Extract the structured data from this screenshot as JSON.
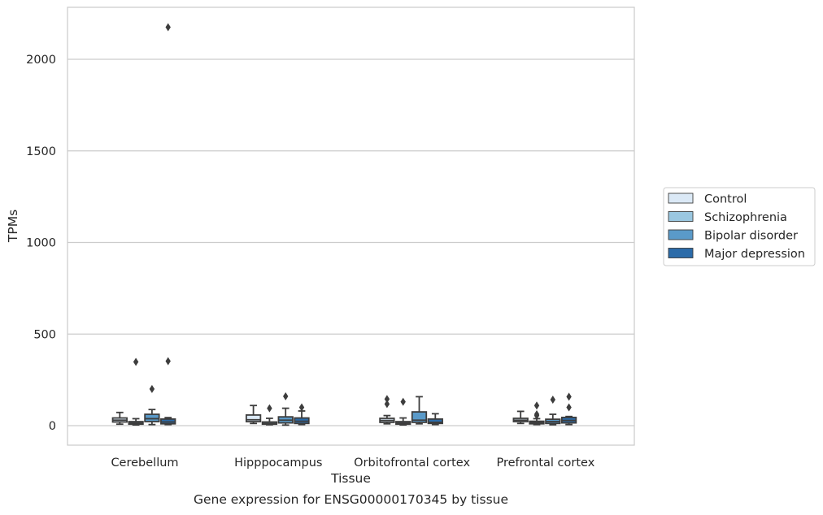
{
  "caption": "Gene expression for ENSG00000170345 by tissue",
  "chart_data": {
    "type": "box",
    "xlabel": "Tissue",
    "ylabel": "TPMs",
    "ylim": [
      -105,
      2285
    ],
    "yticks": [
      0,
      500,
      1000,
      1500,
      2000
    ],
    "grid": true,
    "legend_position": "right",
    "categories": [
      "Cerebellum",
      "Hipppocampus",
      "Orbitofrontal cortex",
      "Prefrontal cortex"
    ],
    "series": [
      {
        "name": "Control",
        "color": "#dbe9f6",
        "boxes": [
          {
            "whislo": 8,
            "q1": 20,
            "med": 30,
            "q3": 42,
            "whishi": 72,
            "fliers": []
          },
          {
            "whislo": 12,
            "q1": 22,
            "med": 32,
            "q3": 58,
            "whishi": 110,
            "fliers": []
          },
          {
            "whislo": 10,
            "q1": 18,
            "med": 28,
            "q3": 40,
            "whishi": 55,
            "fliers": [
              118,
              145
            ]
          },
          {
            "whislo": 12,
            "q1": 22,
            "med": 30,
            "q3": 40,
            "whishi": 78,
            "fliers": []
          }
        ]
      },
      {
        "name": "Schizophrenia",
        "color": "#9ac7e0",
        "boxes": [
          {
            "whislo": 4,
            "q1": 8,
            "med": 14,
            "q3": 22,
            "whishi": 38,
            "fliers": [
              348
            ]
          },
          {
            "whislo": 5,
            "q1": 8,
            "med": 12,
            "q3": 20,
            "whishi": 40,
            "fliers": [
              95
            ]
          },
          {
            "whislo": 4,
            "q1": 8,
            "med": 14,
            "q3": 22,
            "whishi": 42,
            "fliers": [
              130
            ]
          },
          {
            "whislo": 6,
            "q1": 10,
            "med": 16,
            "q3": 24,
            "whishi": 38,
            "fliers": [
              55,
              62,
              110
            ]
          }
        ]
      },
      {
        "name": "Bipolar disorder",
        "color": "#5a9ac9",
        "boxes": [
          {
            "whislo": 6,
            "q1": 22,
            "med": 38,
            "q3": 62,
            "whishi": 88,
            "fliers": [
              200
            ]
          },
          {
            "whislo": 3,
            "q1": 15,
            "med": 30,
            "q3": 48,
            "whishi": 95,
            "fliers": [
              160
            ]
          },
          {
            "whislo": 10,
            "q1": 18,
            "med": 30,
            "q3": 75,
            "whishi": 158,
            "fliers": []
          },
          {
            "whislo": 5,
            "q1": 12,
            "med": 22,
            "q3": 35,
            "whishi": 62,
            "fliers": [
              142
            ]
          }
        ]
      },
      {
        "name": "Major depression",
        "color": "#2b6ba9",
        "boxes": [
          {
            "whislo": 6,
            "q1": 10,
            "med": 20,
            "q3": 36,
            "whishi": 44,
            "fliers": [
              352,
              2175
            ]
          },
          {
            "whislo": 6,
            "q1": 12,
            "med": 24,
            "q3": 42,
            "whishi": 80,
            "fliers": [
              100
            ]
          },
          {
            "whislo": 6,
            "q1": 12,
            "med": 18,
            "q3": 36,
            "whishi": 65,
            "fliers": []
          },
          {
            "whislo": 6,
            "q1": 15,
            "med": 28,
            "q3": 45,
            "whishi": 50,
            "fliers": [
              100,
              158
            ]
          }
        ]
      }
    ]
  }
}
